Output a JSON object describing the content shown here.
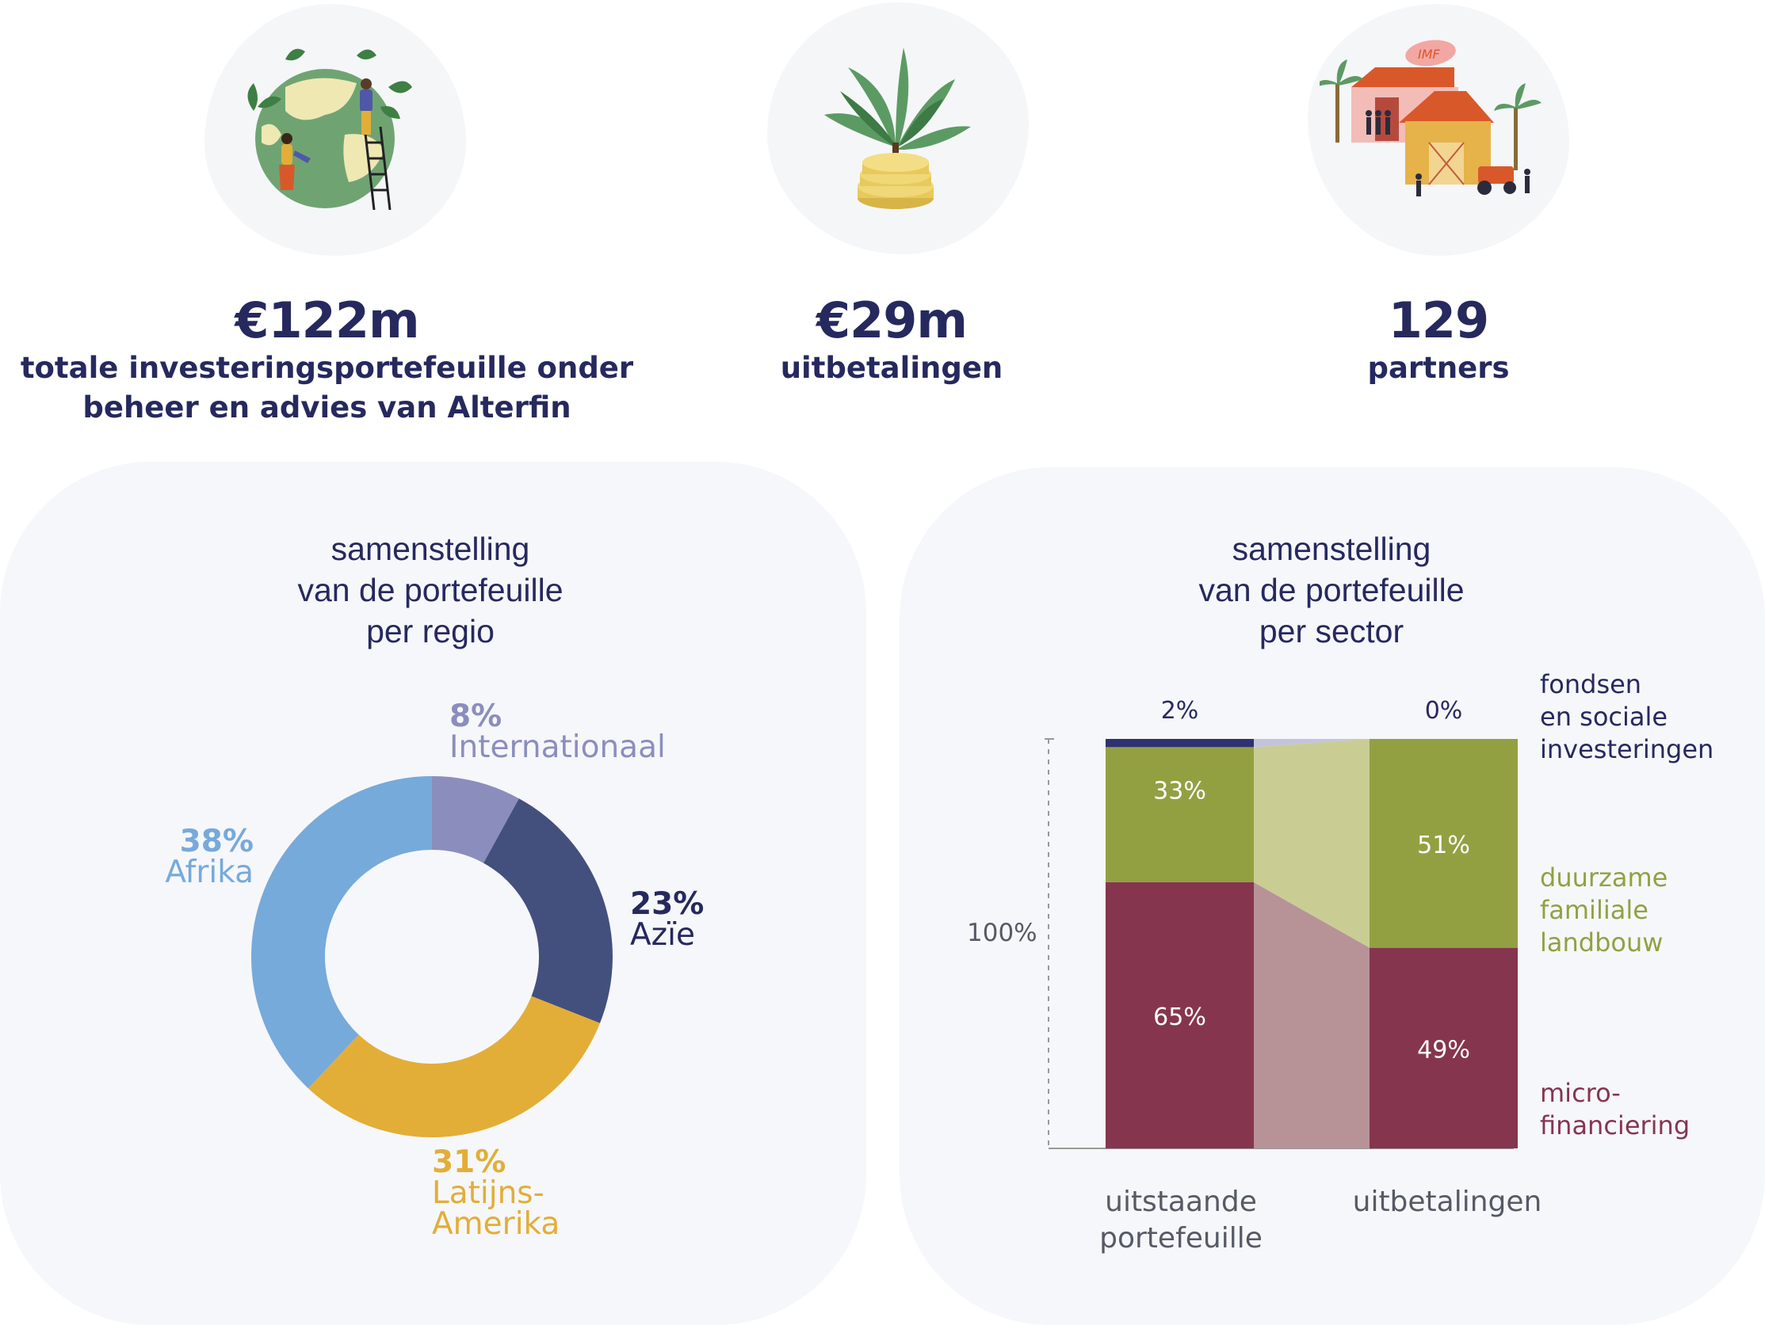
{
  "stats": [
    {
      "value": "€122m",
      "label_lines": [
        "totale investeringsportefeuille onder",
        "beheer en advies van Alterfin"
      ],
      "icon": "globe-people-icon"
    },
    {
      "value": "€29m",
      "label_lines": [
        "uitbetalingen"
      ],
      "icon": "plant-coins-icon"
    },
    {
      "value": "129",
      "label_lines": [
        "partners"
      ],
      "icon": "village-imf-icon"
    }
  ],
  "imf_text": "IMF",
  "colors": {
    "navy": "#26295e",
    "africa": "#76aadb",
    "asia": "#43507e",
    "latam": "#e2ae38",
    "international": "#8b8ebd",
    "micro": "#86354f",
    "micro_light": "#b79398",
    "agri": "#93a042",
    "agri_light": "#c9cd94",
    "funds": "#2f3170",
    "funds_light": "#c3c4dc"
  },
  "chart_data": [
    {
      "type": "pie",
      "subtype": "donut",
      "title_lines": [
        "samenstelling",
        "van de portefeuille",
        "per regio"
      ],
      "slices": [
        {
          "label_lines": [
            "Internationaal"
          ],
          "value": 8,
          "pct_label": "8%",
          "color": "#8b8ebd"
        },
        {
          "label_lines": [
            "Azïe"
          ],
          "value": 23,
          "pct_label": "23%",
          "color": "#43507e"
        },
        {
          "label_lines": [
            "Latijns-",
            "Amerika"
          ],
          "value": 31,
          "pct_label": "31%",
          "color": "#e2ae38"
        },
        {
          "label_lines": [
            "Afrika"
          ],
          "value": 38,
          "pct_label": "38%",
          "color": "#76aadb"
        }
      ]
    },
    {
      "type": "bar",
      "subtype": "stacked-100",
      "title_lines": [
        "samenstelling",
        "van de portefeuille",
        "per sector"
      ],
      "y_axis_label": "100%",
      "categories": [
        {
          "label_lines": [
            "uitstaande",
            "portefeuille"
          ]
        },
        {
          "label_lines": [
            "uitbetalingen"
          ]
        }
      ],
      "series": [
        {
          "name_lines": [
            "micro-",
            "financiering"
          ],
          "values": [
            65,
            49
          ],
          "labels": [
            "65%",
            "49%"
          ],
          "color": "#86354f",
          "connector_color": "#b79398"
        },
        {
          "name_lines": [
            "duurzame",
            "familiale",
            "landbouw"
          ],
          "values": [
            33,
            51
          ],
          "labels": [
            "33%",
            "51%"
          ],
          "color": "#93a042",
          "connector_color": "#c9cd94"
        },
        {
          "name_lines": [
            "fondsen",
            "en sociale",
            "investeringen"
          ],
          "values": [
            2,
            0
          ],
          "labels": [
            "2%",
            "0%"
          ],
          "color": "#2f3170",
          "connector_color": "#c3c4dc"
        }
      ]
    }
  ]
}
